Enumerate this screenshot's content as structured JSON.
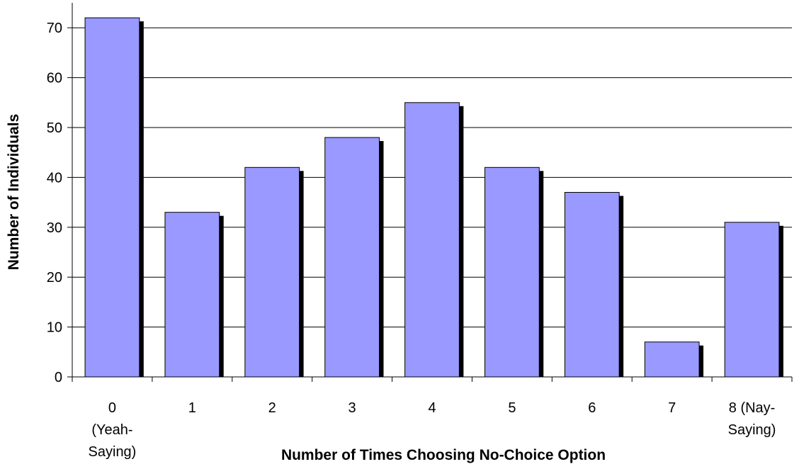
{
  "chart_data": {
    "type": "bar",
    "title": "",
    "xlabel": "Number of Times Choosing No-Choice Option",
    "ylabel": "Number of Individuals",
    "categories": [
      [
        "0",
        "(Yeah-",
        "Saying)"
      ],
      [
        "1"
      ],
      [
        "2"
      ],
      [
        "3"
      ],
      [
        "4"
      ],
      [
        "5"
      ],
      [
        "6"
      ],
      [
        "7"
      ],
      [
        "8 (Nay-",
        "Saying)"
      ]
    ],
    "values": [
      72,
      33,
      42,
      48,
      55,
      42,
      37,
      7,
      31
    ],
    "ylim": [
      0,
      75
    ],
    "yticks": [
      0,
      10,
      20,
      30,
      40,
      50,
      60,
      70
    ],
    "grid": true,
    "legend": "none",
    "bar_color": "#9999ff",
    "shadow_color": "#000000"
  }
}
